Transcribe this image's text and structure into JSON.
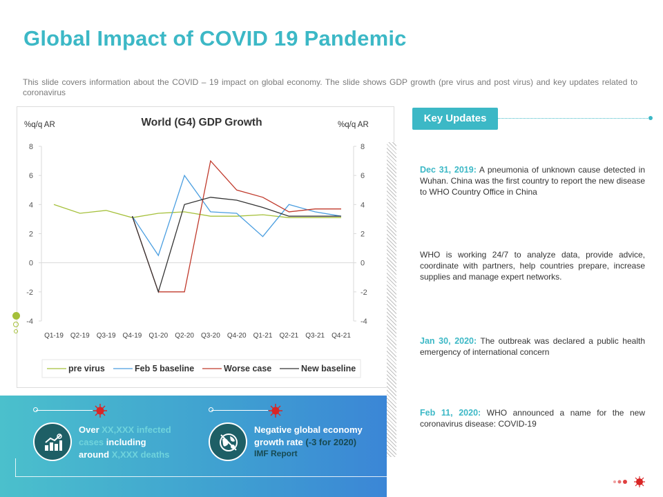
{
  "page": {
    "title": "Global Impact of COVID 19 Pandemic",
    "subtitle": "This slide covers information about the COVID – 19 impact on global economy. The slide shows GDP growth (pre virus and post virus) and key updates related to coronavirus"
  },
  "chart_data": {
    "type": "line",
    "title": "World (G4) GDP Growth",
    "ylabel": "%q/q AR",
    "ylabel_right": "%q/q AR",
    "ylim": [
      -4,
      8
    ],
    "yticks": [
      -4,
      -2,
      0,
      2,
      4,
      6,
      8
    ],
    "categories": [
      "Q1-19",
      "Q2-19",
      "Q3-19",
      "Q4-19",
      "Q1-20",
      "Q2-20",
      "Q3-20",
      "Q4-20",
      "Q1-21",
      "Q2-21",
      "Q3-21",
      "Q4-21"
    ],
    "legend": "bottom",
    "series": [
      {
        "name": "pre virus",
        "color": "#a5c03a",
        "values": [
          4.0,
          3.4,
          3.6,
          3.1,
          3.4,
          3.5,
          3.2,
          3.2,
          3.3,
          3.1,
          3.1,
          3.1
        ]
      },
      {
        "name": "Feb 5 baseline",
        "color": "#4a9ee0",
        "values": [
          null,
          null,
          null,
          3.2,
          0.5,
          6.0,
          3.5,
          3.4,
          1.8,
          4.0,
          3.5,
          3.2
        ]
      },
      {
        "name": "Worse case",
        "color": "#c0392b",
        "values": [
          null,
          null,
          null,
          3.2,
          -2.0,
          -2.0,
          7.0,
          5.0,
          4.5,
          3.5,
          3.7,
          3.7
        ]
      },
      {
        "name": "New baseline",
        "color": "#333333",
        "values": [
          null,
          null,
          null,
          3.2,
          -2.0,
          4.0,
          4.5,
          4.3,
          3.8,
          3.2,
          3.2,
          3.2
        ]
      }
    ]
  },
  "stats": [
    {
      "line1": "Over",
      "line1_faint": "XX,XXX infected",
      "line2_faint": "cases",
      "line2": "including",
      "line3": "around",
      "line3_faint": "X,XXX deaths",
      "icon": "chart-growth-icon"
    },
    {
      "line1": "Negative global economy",
      "line2": "growth rate",
      "paren": "(-3 for 2020)",
      "source": "IMF Report",
      "icon": "globe-virus-icon"
    }
  ],
  "updates": {
    "header": "Key Updates",
    "items": [
      {
        "date": "Dec 31, 2019:",
        "text": "A pneumonia of unknown cause detected in Wuhan. China was the first country to report the new disease to WHO Country Office in China"
      },
      {
        "date": "",
        "text": "WHO is working 24/7 to analyze data, provide advice, coordinate with partners, help countries prepare, increase supplies and manage expert networks."
      },
      {
        "date": "Jan 30, 2020:",
        "text": "The outbreak was declared a public health emergency of international concern"
      },
      {
        "date": "Feb 11, 2020:",
        "text": "WHO announced a name for the new coronavirus disease: COVID-19"
      }
    ]
  },
  "colors": {
    "accent": "#3cb8c6",
    "virus": "#d92525",
    "badge": "#1e5f66"
  }
}
